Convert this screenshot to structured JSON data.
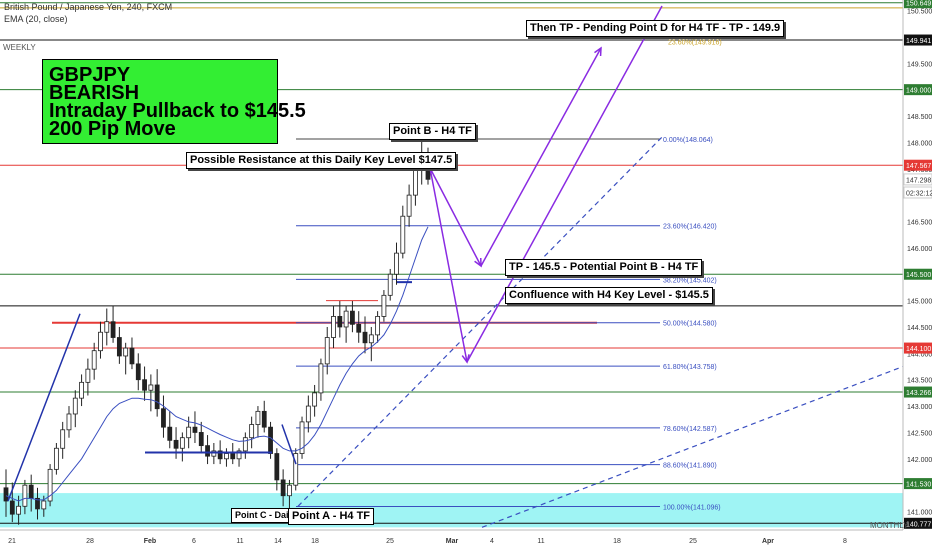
{
  "header": {
    "symbol": "British Pound / Japanese Yen, 240, FXCM",
    "indicator": "EMA (20, close)",
    "timeframe_top": "WEEKLY",
    "timeframe_bottom": "MONTHLY"
  },
  "banner": {
    "line1": "GBPJPY",
    "line2": "BEARISH",
    "line3": "Intraday Pullback to $145.5",
    "line4": "200 Pip Move",
    "color": "#33ee33"
  },
  "annotations": {
    "tp_pending": "Then TP - Pending Point D for H4 TF - TP - 149.9",
    "point_b": "Point B - H4 TF",
    "resistance": "Possible Resistance at this Daily Key Level $147.5",
    "tp_145": "TP - 145.5 - Potential Point B - H4 TF",
    "confluence": "Confluence with H4 Key Level - $145.5",
    "point_c": "Point C - Daily",
    "point_a": "Point A - H4 TF"
  },
  "chart_data": {
    "type": "candlestick",
    "symbol": "GBPJPY",
    "interval": "240",
    "ylim": [
      140.65,
      150.7
    ],
    "x_ticks": [
      "21",
      "28",
      "Feb",
      "6",
      "11",
      "14",
      "18",
      "25",
      "Mar",
      "4",
      "11",
      "18",
      "25",
      "Apr",
      "8"
    ],
    "price_labels": [
      "150.500",
      "150.000",
      "149.500",
      "149.000",
      "148.500",
      "148.000",
      "147.500",
      "147.000",
      "146.500",
      "146.000",
      "145.500",
      "145.000",
      "144.500",
      "144.000",
      "143.500",
      "143.000",
      "142.500",
      "142.000",
      "141.500",
      "141.000"
    ],
    "highlighted_levels": [
      {
        "label": "150.649",
        "value": 150.649,
        "color": "#2e7d32"
      },
      {
        "label": "149.941",
        "value": 149.941,
        "color": "#111111"
      },
      {
        "label": "149.000",
        "value": 149.0,
        "color": "#2e7d32"
      },
      {
        "label": "147.567",
        "value": 147.567,
        "color": "#e53935"
      },
      {
        "label": "147.298",
        "value": 147.298,
        "color": "#ffffff"
      },
      {
        "label": "02:32:12",
        "value": 147.05,
        "color": "#ffffff"
      },
      {
        "label": "145.500",
        "value": 145.5,
        "color": "#2e7d32"
      },
      {
        "label": "144.100",
        "value": 144.1,
        "color": "#e53935"
      },
      {
        "label": "143.266",
        "value": 143.266,
        "color": "#2e7d32"
      },
      {
        "label": "141.530",
        "value": 141.53,
        "color": "#2e7d32"
      },
      {
        "label": "140.777",
        "value": 140.777,
        "color": "#111111"
      }
    ],
    "fib_levels": [
      {
        "label": "0.00%(148.064)",
        "value": 148.064
      },
      {
        "label": "23.60%(146.420)",
        "value": 146.42
      },
      {
        "label": "38.20%(145.402)",
        "value": 145.402
      },
      {
        "label": "50.00%(144.580)",
        "value": 144.58
      },
      {
        "label": "61.80%(143.758)",
        "value": 143.758
      },
      {
        "label": "78.60%(142.587)",
        "value": 142.587
      },
      {
        "label": "88.60%(141.890)",
        "value": 141.89
      },
      {
        "label": "100.00%(141.096)",
        "value": 141.096
      }
    ],
    "fib_ext_label": "23.60%(149.916)",
    "support_zone": [
      140.7,
      141.35
    ],
    "candles": [
      [
        141.45,
        141.8,
        140.9,
        141.2
      ],
      [
        141.2,
        141.55,
        140.8,
        140.95
      ],
      [
        140.95,
        141.3,
        140.75,
        141.1
      ],
      [
        141.1,
        141.6,
        140.95,
        141.5
      ],
      [
        141.5,
        141.7,
        141.0,
        141.25
      ],
      [
        141.25,
        141.45,
        140.85,
        141.05
      ],
      [
        141.05,
        141.3,
        140.9,
        141.2
      ],
      [
        141.2,
        141.9,
        141.1,
        141.8
      ],
      [
        141.8,
        142.3,
        141.7,
        142.2
      ],
      [
        142.2,
        142.7,
        142.0,
        142.55
      ],
      [
        142.55,
        143.0,
        142.4,
        142.85
      ],
      [
        142.85,
        143.3,
        142.6,
        143.15
      ],
      [
        143.15,
        143.6,
        143.0,
        143.45
      ],
      [
        143.45,
        143.9,
        143.2,
        143.7
      ],
      [
        143.7,
        144.2,
        143.5,
        144.05
      ],
      [
        144.05,
        144.6,
        143.9,
        144.4
      ],
      [
        144.4,
        144.85,
        144.15,
        144.6
      ],
      [
        144.6,
        144.9,
        144.2,
        144.3
      ],
      [
        144.3,
        144.5,
        143.8,
        143.95
      ],
      [
        143.95,
        144.2,
        143.6,
        144.1
      ],
      [
        144.1,
        144.3,
        143.7,
        143.8
      ],
      [
        143.8,
        144.0,
        143.3,
        143.5
      ],
      [
        143.5,
        143.75,
        143.1,
        143.3
      ],
      [
        143.3,
        143.6,
        142.9,
        143.4
      ],
      [
        143.4,
        143.7,
        142.8,
        142.95
      ],
      [
        142.95,
        143.2,
        142.4,
        142.6
      ],
      [
        142.6,
        142.9,
        142.2,
        142.35
      ],
      [
        142.35,
        142.6,
        142.0,
        142.2
      ],
      [
        142.2,
        142.5,
        141.95,
        142.4
      ],
      [
        142.4,
        142.8,
        142.2,
        142.6
      ],
      [
        142.6,
        142.9,
        142.3,
        142.5
      ],
      [
        142.5,
        142.7,
        142.1,
        142.25
      ],
      [
        142.25,
        142.45,
        141.9,
        142.05
      ],
      [
        142.05,
        142.3,
        141.9,
        142.15
      ],
      [
        142.15,
        142.35,
        141.9,
        142.0
      ],
      [
        142.0,
        142.2,
        141.85,
        142.1
      ],
      [
        142.1,
        142.3,
        141.9,
        142.0
      ],
      [
        142.0,
        142.2,
        141.85,
        142.15
      ],
      [
        142.15,
        142.5,
        142.0,
        142.4
      ],
      [
        142.4,
        142.8,
        142.2,
        142.65
      ],
      [
        142.65,
        143.0,
        142.4,
        142.9
      ],
      [
        142.9,
        143.1,
        142.5,
        142.6
      ],
      [
        142.6,
        142.7,
        142.0,
        142.1
      ],
      [
        142.1,
        142.2,
        141.4,
        141.6
      ],
      [
        141.6,
        141.8,
        141.1,
        141.3
      ],
      [
        141.3,
        141.6,
        141.05,
        141.5
      ],
      [
        141.5,
        142.2,
        141.4,
        142.1
      ],
      [
        142.1,
        142.8,
        142.0,
        142.7
      ],
      [
        142.7,
        143.2,
        142.5,
        143.0
      ],
      [
        143.0,
        143.4,
        142.8,
        143.25
      ],
      [
        143.25,
        143.9,
        143.1,
        143.8
      ],
      [
        143.8,
        144.5,
        143.6,
        144.3
      ],
      [
        144.3,
        144.9,
        144.1,
        144.7
      ],
      [
        144.7,
        145.0,
        144.3,
        144.5
      ],
      [
        144.5,
        144.9,
        144.2,
        144.8
      ],
      [
        144.8,
        145.0,
        144.4,
        144.55
      ],
      [
        144.55,
        144.8,
        144.2,
        144.4
      ],
      [
        144.4,
        144.7,
        144.0,
        144.2
      ],
      [
        144.2,
        144.5,
        143.85,
        144.35
      ],
      [
        144.35,
        144.8,
        144.2,
        144.7
      ],
      [
        144.7,
        145.2,
        144.6,
        145.1
      ],
      [
        145.1,
        145.6,
        145.0,
        145.5
      ],
      [
        145.5,
        146.1,
        145.3,
        145.9
      ],
      [
        145.9,
        146.8,
        145.8,
        146.6
      ],
      [
        146.6,
        147.2,
        146.4,
        147.0
      ],
      [
        147.0,
        147.7,
        146.8,
        147.5
      ],
      [
        147.5,
        148.06,
        147.2,
        147.8
      ],
      [
        147.8,
        147.9,
        147.2,
        147.3
      ]
    ],
    "ema": [
      141.3,
      141.25,
      141.2,
      141.25,
      141.25,
      141.22,
      141.22,
      141.3,
      141.4,
      141.55,
      141.7,
      141.85,
      142.0,
      142.2,
      142.4,
      142.6,
      142.8,
      142.95,
      143.05,
      143.1,
      143.15,
      143.15,
      143.13,
      143.12,
      143.08,
      143.0,
      142.9,
      142.8,
      142.75,
      142.7,
      142.68,
      142.64,
      142.58,
      142.52,
      142.46,
      142.41,
      142.36,
      142.33,
      142.34,
      142.37,
      142.42,
      142.43,
      142.4,
      142.3,
      142.2,
      142.15,
      142.15,
      142.2,
      142.3,
      142.45,
      142.65,
      142.9,
      143.15,
      143.4,
      143.62,
      143.8,
      143.95,
      144.05,
      144.12,
      144.22,
      144.35,
      144.55,
      144.8,
      145.1,
      145.45,
      145.8,
      146.15,
      146.4
    ]
  }
}
